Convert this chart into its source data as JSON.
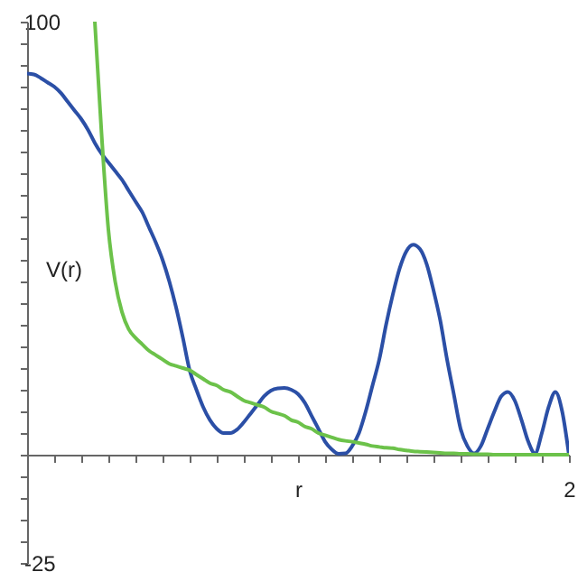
{
  "chart_data": {
    "type": "line",
    "ylabel": "V(r)",
    "categories": [
      null,
      null,
      null,
      null,
      null,
      null,
      null,
      null,
      null,
      null,
      null,
      null,
      null,
      null,
      null,
      null,
      null,
      null,
      null,
      null,
      null,
      null,
      null,
      null,
      null,
      null,
      null,
      null,
      null,
      null,
      null,
      null,
      null,
      null,
      null,
      null,
      null,
      null,
      null,
      null,
      "r",
      null,
      null,
      null,
      null,
      null,
      null,
      null,
      null,
      null,
      null,
      null,
      null,
      null,
      null,
      null,
      null,
      null,
      null,
      null,
      null,
      null,
      null,
      null,
      null,
      null,
      null,
      null,
      null,
      null,
      null,
      null,
      null,
      null,
      null,
      null,
      null,
      null,
      null,
      null,
      "2"
    ],
    "ylim": [
      -25,
      100
    ],
    "yticks": [
      -25,
      {
        "value": -20,
        "label": null
      },
      {
        "value": -15,
        "label": null
      },
      {
        "value": -10,
        "label": null
      },
      {
        "value": -5,
        "label": null
      },
      {
        "value": 0,
        "label": null
      },
      {
        "value": 5,
        "label": null
      },
      {
        "value": 10,
        "label": null
      },
      {
        "value": 15,
        "label": null
      },
      {
        "value": 20,
        "label": null
      },
      {
        "value": 25,
        "label": null
      },
      {
        "value": 30,
        "label": null
      },
      {
        "value": 35,
        "label": null
      },
      {
        "value": 40,
        "label": null
      },
      {
        "value": 45,
        "label": null
      },
      {
        "value": 50,
        "label": null
      },
      {
        "value": 55,
        "label": null
      },
      {
        "value": 60,
        "label": null
      },
      {
        "value": 65,
        "label": null
      },
      {
        "value": 70,
        "label": null
      },
      {
        "value": 75,
        "label": null
      },
      {
        "value": 80,
        "label": null
      },
      {
        "value": 85,
        "label": null
      },
      {
        "value": 90,
        "label": null
      },
      {
        "value": 95,
        "label": null
      },
      100
    ],
    "grid": false,
    "marker": "none",
    "line_style": "solid",
    "series": [
      {
        "color": "#2b4fa6",
        "values": [
          88,
          87.8,
          87,
          86,
          85,
          83.5,
          81.5,
          79.5,
          77.5,
          75,
          72,
          69.5,
          67.5,
          65.5,
          63.5,
          61,
          58.5,
          56,
          52.5,
          49,
          45,
          40,
          34,
          27,
          19.5,
          15,
          11,
          8,
          6,
          5,
          5,
          5.8,
          7.5,
          9.5,
          11.5,
          13.5,
          14.8,
          15.3,
          15.4,
          15,
          14,
          12,
          9,
          6,
          3,
          1.2,
          0.2,
          0.3,
          2,
          5,
          10,
          16,
          22,
          30,
          37,
          43,
          47,
          48.5,
          47.5,
          44,
          38,
          31,
          22,
          14,
          6,
          2,
          0.3,
          2,
          6,
          10,
          13.5,
          14.5,
          12.5,
          8,
          3,
          0.3,
          5,
          11,
          14.5,
          10,
          0
        ]
      },
      {
        "color": "#6cc24a",
        "values": [
          null,
          null,
          null,
          null,
          null,
          null,
          null,
          null,
          null,
          null,
          100,
          74,
          52,
          40,
          33,
          29,
          27,
          25.5,
          24,
          23,
          22,
          21,
          20.5,
          20,
          19.5,
          18.5,
          17.5,
          16.5,
          16,
          15,
          14.5,
          13.5,
          12.5,
          12,
          11.5,
          11,
          10,
          9.5,
          9,
          8,
          7.5,
          6.5,
          6,
          5,
          4.5,
          4,
          3.5,
          3.2,
          3,
          2.7,
          2.4,
          2,
          1.8,
          1.6,
          1.5,
          1.2,
          1,
          0.8,
          0.7,
          0.6,
          0.5,
          0.4,
          0.3,
          0.3,
          0.2,
          0.2,
          0.1,
          0.1,
          0.1,
          0,
          0,
          0,
          0,
          0,
          0,
          0,
          0,
          0,
          0,
          0,
          0
        ]
      }
    ]
  }
}
